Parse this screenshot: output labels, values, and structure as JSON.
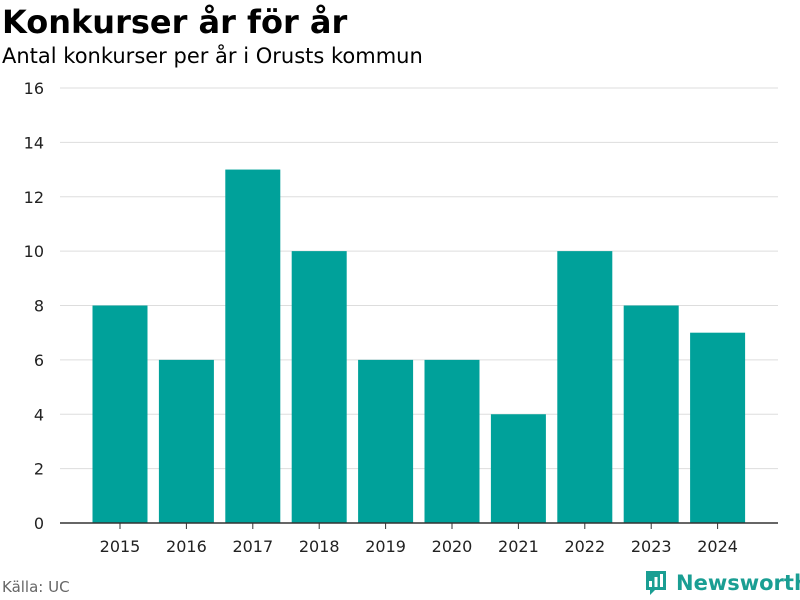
{
  "header": {
    "title": "Konkurser år för år",
    "subtitle": "Antal konkurser per år i Orusts kommun"
  },
  "footer": {
    "source": "Källa: UC",
    "brand": "Newsworthy"
  },
  "colors": {
    "bar": "#00a19a",
    "grid": "#dddddd",
    "axis": "#333333",
    "brand": "#1a9e93"
  },
  "chart_data": {
    "type": "bar",
    "title": "Konkurser år för år",
    "subtitle": "Antal konkurser per år i Orusts kommun",
    "xlabel": "",
    "ylabel": "",
    "categories": [
      "2015",
      "2016",
      "2017",
      "2018",
      "2019",
      "2020",
      "2021",
      "2022",
      "2023",
      "2024"
    ],
    "values": [
      8,
      6,
      13,
      10,
      6,
      6,
      4,
      10,
      8,
      7
    ],
    "ylim": [
      0,
      16
    ],
    "yticks": [
      0,
      2,
      4,
      6,
      8,
      10,
      12,
      14,
      16
    ],
    "grid": true,
    "legend": "none"
  }
}
